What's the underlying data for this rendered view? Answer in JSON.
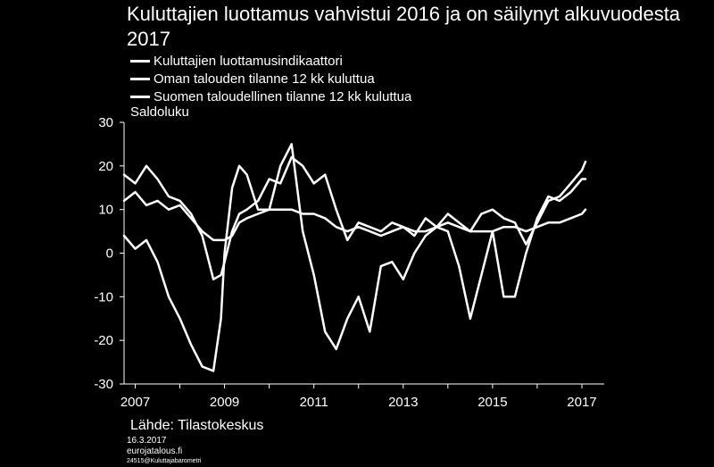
{
  "title": "Kuluttajien luottamus vahvistui 2016 ja on säilynyt alkuvuodesta 2017",
  "unit_label": "Saldoluku",
  "source": "Lähde: Tilastokeskus",
  "footer": {
    "date": "16.3.2017",
    "site": "eurojatalous.fi",
    "code": "24515@Kuluttajabarometri"
  },
  "colors": {
    "background": "#000000",
    "line": "#ffffff"
  },
  "chart_data": {
    "type": "line",
    "title": "Kuluttajien luottamus vahvistui 2016 ja on säilynyt alkuvuodesta 2017",
    "ylabel": "Saldoluku",
    "ylim": [
      -30,
      30
    ],
    "xlim": [
      2006.75,
      2017.5
    ],
    "y_ticks": [
      30,
      20,
      10,
      0,
      -10,
      -20,
      -30
    ],
    "y_tick_labels": [
      "30",
      "20",
      "10",
      "0",
      "-10",
      "-20",
      "-30"
    ],
    "x_ticks": [
      2007,
      2009,
      2011,
      2013,
      2015,
      2017
    ],
    "x_tick_labels": [
      "2007",
      "2009",
      "2011",
      "2013",
      "2015",
      "2017"
    ],
    "grid": false,
    "legend_position": "top-left",
    "series": [
      {
        "name": "Kuluttajien luottamusindikaattori",
        "x": [
          2006.75,
          2007.0,
          2007.25,
          2007.5,
          2007.75,
          2008.0,
          2008.25,
          2008.5,
          2008.75,
          2008.92,
          2009.0,
          2009.17,
          2009.33,
          2009.5,
          2009.75,
          2010.0,
          2010.25,
          2010.5,
          2010.75,
          2011.0,
          2011.25,
          2011.5,
          2011.75,
          2012.0,
          2012.25,
          2012.5,
          2012.75,
          2013.0,
          2013.25,
          2013.5,
          2013.75,
          2014.0,
          2014.25,
          2014.5,
          2014.75,
          2015.0,
          2015.25,
          2015.5,
          2015.75,
          2016.0,
          2016.25,
          2016.5,
          2016.75,
          2017.0,
          2017.08
        ],
        "y": [
          12,
          14,
          11,
          12,
          10,
          11,
          8,
          5,
          3,
          3,
          3,
          4,
          7,
          8,
          9,
          10,
          10,
          10,
          9,
          9,
          8,
          6,
          5,
          6,
          5,
          4,
          5,
          6,
          5,
          5,
          6,
          7,
          6,
          5,
          5,
          5,
          6,
          6,
          5,
          6,
          7,
          7,
          8,
          9,
          10
        ]
      },
      {
        "name": "Oman talouden tilanne 12 kk kuluttua",
        "x": [
          2006.75,
          2007.0,
          2007.25,
          2007.5,
          2007.75,
          2008.0,
          2008.25,
          2008.5,
          2008.75,
          2008.92,
          2009.0,
          2009.17,
          2009.33,
          2009.5,
          2009.75,
          2010.0,
          2010.25,
          2010.5,
          2010.75,
          2011.0,
          2011.25,
          2011.5,
          2011.75,
          2012.0,
          2012.25,
          2012.5,
          2012.75,
          2013.0,
          2013.25,
          2013.5,
          2013.75,
          2014.0,
          2014.25,
          2014.5,
          2014.75,
          2015.0,
          2015.25,
          2015.5,
          2015.75,
          2016.0,
          2016.25,
          2016.5,
          2016.75,
          2017.0,
          2017.08
        ],
        "y": [
          18,
          16,
          20,
          17,
          13,
          12,
          9,
          4,
          -6,
          -5,
          -2,
          5,
          9,
          10,
          12,
          17,
          16,
          22,
          20,
          16,
          18,
          10,
          3,
          7,
          6,
          5,
          7,
          6,
          4,
          8,
          6,
          9,
          7,
          5,
          9,
          10,
          8,
          7,
          2,
          7,
          12,
          13,
          16,
          19,
          21
        ]
      },
      {
        "name": "Suomen taloudellinen tilanne 12 kk kuluttua",
        "x": [
          2006.75,
          2007.0,
          2007.25,
          2007.5,
          2007.75,
          2008.0,
          2008.25,
          2008.5,
          2008.75,
          2008.92,
          2009.0,
          2009.17,
          2009.33,
          2009.5,
          2009.75,
          2010.0,
          2010.25,
          2010.5,
          2010.75,
          2011.0,
          2011.25,
          2011.5,
          2011.75,
          2012.0,
          2012.25,
          2012.5,
          2012.75,
          2013.0,
          2013.25,
          2013.5,
          2013.75,
          2014.0,
          2014.25,
          2014.5,
          2014.75,
          2015.0,
          2015.25,
          2015.5,
          2015.75,
          2016.0,
          2016.25,
          2016.5,
          2016.75,
          2017.0,
          2017.08
        ],
        "y": [
          4,
          1,
          3,
          -2,
          -10,
          -15,
          -21,
          -26,
          -27,
          -15,
          0,
          15,
          20,
          18,
          10,
          10,
          20,
          25,
          5,
          -5,
          -18,
          -22,
          -15,
          -10,
          -18,
          -3,
          -2,
          -6,
          0,
          4,
          6,
          5,
          -3,
          -15,
          -5,
          5,
          -10,
          -10,
          0,
          8,
          13,
          12,
          14,
          17,
          17
        ]
      }
    ]
  }
}
